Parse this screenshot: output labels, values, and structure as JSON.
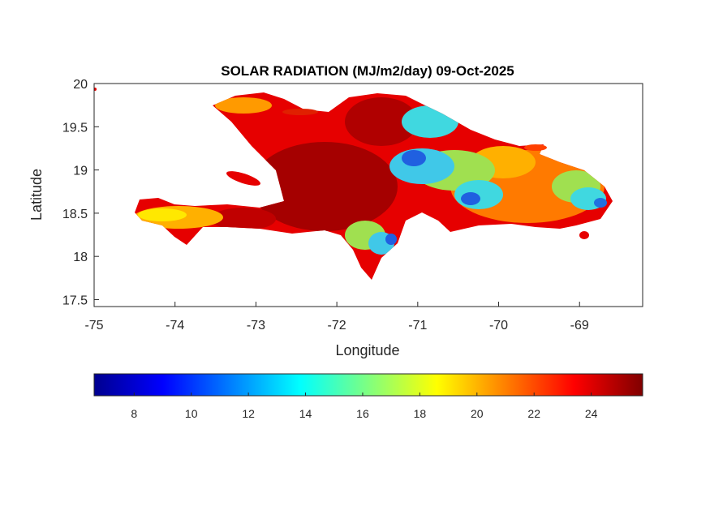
{
  "title": "SOLAR RADIATION (MJ/m2/day) 09-Oct-2025",
  "axes": {
    "xlabel": "Longitude",
    "ylabel": "Latitude",
    "xlim": [
      -75,
      -68.22
    ],
    "ylim": [
      17.42,
      20
    ],
    "xticks": [
      -75,
      -74,
      -73,
      -72,
      -71,
      -70,
      -69
    ],
    "xtick_labels": [
      "-75",
      "-74",
      "-73",
      "-72",
      "-71",
      "-70",
      "-69"
    ],
    "yticks": [
      17.5,
      18,
      18.5,
      19,
      19.5,
      20
    ],
    "ytick_labels": [
      "17.5",
      "18",
      "18.5",
      "19",
      "19.5",
      "20"
    ]
  },
  "colorbar": {
    "colormap": "jet",
    "range": [
      6.6,
      25.8
    ],
    "ticks": [
      8,
      10,
      12,
      14,
      16,
      18,
      20,
      22,
      24
    ],
    "tick_labels": [
      "8",
      "10",
      "12",
      "14",
      "16",
      "18",
      "20",
      "22",
      "24"
    ]
  },
  "map": {
    "region": "Hispaniola",
    "variable": "solar radiation",
    "colors": {
      "dark_red": "#a50000",
      "red": "#e60000",
      "orange": "#ff7a00",
      "yellow": "#ffe800",
      "green": "#a0e050",
      "cyan": "#40d8e0",
      "blue": "#2060e0"
    }
  }
}
